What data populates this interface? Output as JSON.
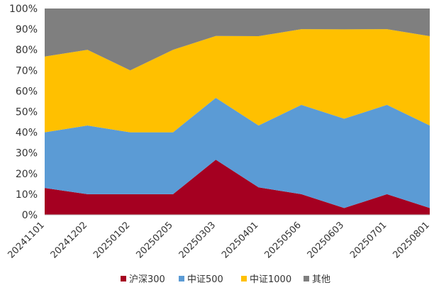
{
  "chart_data": {
    "type": "area",
    "stacked": true,
    "percent": true,
    "categories": [
      "20241101",
      "20241202",
      "20250102",
      "20250205",
      "20250303",
      "20250401",
      "20250506",
      "20250603",
      "20250701",
      "20250801"
    ],
    "series": [
      {
        "name": "沪深300",
        "color": "#A50021",
        "values": [
          13,
          10,
          10,
          10,
          26.7,
          13.3,
          10,
          3.3,
          10,
          3.3
        ]
      },
      {
        "name": "中证500",
        "color": "#5B9BD5",
        "values": [
          27,
          33.3,
          30,
          30,
          30,
          30,
          43.3,
          43.3,
          43.3,
          40
        ]
      },
      {
        "name": "中证1000",
        "color": "#FFC000",
        "values": [
          36.7,
          36.7,
          30,
          40,
          30,
          43.3,
          36.7,
          43.3,
          36.7,
          43.3
        ]
      },
      {
        "name": "其他",
        "color": "#7F7F7F",
        "values": [
          23.3,
          20,
          30,
          20,
          13.3,
          13.4,
          10,
          10.1,
          10,
          13.4
        ]
      }
    ],
    "y_ticks": [
      "0%",
      "10%",
      "20%",
      "30%",
      "40%",
      "50%",
      "60%",
      "70%",
      "80%",
      "90%",
      "100%"
    ],
    "ylim": [
      0,
      100
    ],
    "grid": false,
    "legend_position": "bottom",
    "title": "",
    "xlabel": "",
    "ylabel": ""
  }
}
